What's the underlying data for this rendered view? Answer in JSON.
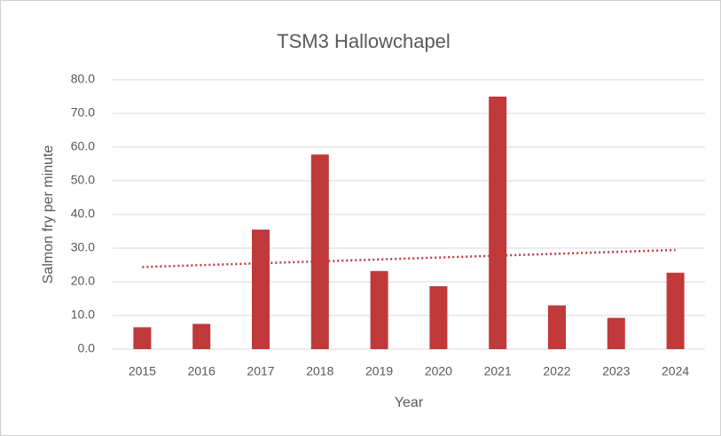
{
  "chart_data": {
    "type": "bar",
    "title": "TSM3 Hallowchapel",
    "x_label": "Year",
    "y_label": "Salmon fry per minute",
    "categories": [
      "2015",
      "2016",
      "2017",
      "2018",
      "2019",
      "2020",
      "2021",
      "2022",
      "2023",
      "2024"
    ],
    "values": [
      6.5,
      7.5,
      35.5,
      57.8,
      23.2,
      18.7,
      75.0,
      13.0,
      9.3,
      22.7
    ],
    "color": "#c0393b",
    "trendline": true,
    "ylim": [
      0,
      80
    ],
    "yticks": [
      {
        "value": 0,
        "label": "0.0"
      },
      {
        "value": 10,
        "label": "10.0"
      },
      {
        "value": 20,
        "label": "20.0"
      },
      {
        "value": 30,
        "label": "30.0"
      },
      {
        "value": 40,
        "label": "40.0"
      },
      {
        "value": 50,
        "label": "50.0"
      },
      {
        "value": 60,
        "label": "60.0"
      },
      {
        "value": 70,
        "label": "70.0"
      },
      {
        "value": 80,
        "label": "80.0"
      }
    ],
    "grid": true
  }
}
